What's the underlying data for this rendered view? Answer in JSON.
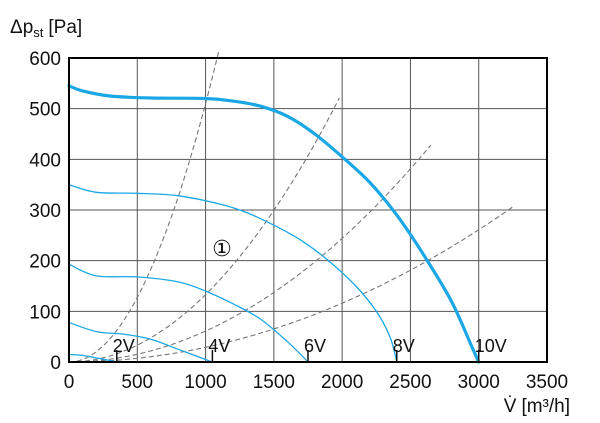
{
  "chart_data": {
    "type": "line",
    "ylabel_main": "Δp",
    "ylabel_sub": "st",
    "ylabel_unit": "[Pa]",
    "xlabel_main": "V̇",
    "xlabel_unit": "[m³/h]",
    "xlim": [
      0,
      3500
    ],
    "ylim": [
      0,
      600
    ],
    "xticks": [
      0,
      500,
      1000,
      1500,
      2000,
      2500,
      3000,
      3500
    ],
    "yticks": [
      0,
      100,
      200,
      300,
      400,
      500,
      600
    ],
    "grid": true,
    "series": [
      {
        "label": "10V",
        "emphasis": "bold",
        "points": [
          [
            0,
            545
          ],
          [
            100,
            535
          ],
          [
            300,
            525
          ],
          [
            600,
            521
          ],
          [
            1000,
            520
          ],
          [
            1200,
            515
          ],
          [
            1400,
            505
          ],
          [
            1600,
            485
          ],
          [
            1800,
            450
          ],
          [
            2000,
            405
          ],
          [
            2200,
            355
          ],
          [
            2400,
            290
          ],
          [
            2600,
            210
          ],
          [
            2800,
            120
          ],
          [
            2950,
            30
          ],
          [
            3000,
            0
          ]
        ]
      },
      {
        "label": "8V",
        "points": [
          [
            0,
            350
          ],
          [
            200,
            335
          ],
          [
            500,
            333
          ],
          [
            800,
            328
          ],
          [
            1100,
            312
          ],
          [
            1300,
            295
          ],
          [
            1500,
            270
          ],
          [
            1700,
            240
          ],
          [
            1900,
            200
          ],
          [
            2100,
            150
          ],
          [
            2250,
            100
          ],
          [
            2350,
            50
          ],
          [
            2400,
            0
          ]
        ]
      },
      {
        "label": "6V",
        "points": [
          [
            0,
            193
          ],
          [
            200,
            170
          ],
          [
            500,
            168
          ],
          [
            800,
            158
          ],
          [
            1000,
            140
          ],
          [
            1200,
            115
          ],
          [
            1400,
            85
          ],
          [
            1600,
            40
          ],
          [
            1750,
            0
          ]
        ]
      },
      {
        "label": "4V",
        "points": [
          [
            0,
            78
          ],
          [
            200,
            60
          ],
          [
            400,
            55
          ],
          [
            600,
            45
          ],
          [
            800,
            25
          ],
          [
            1000,
            5
          ],
          [
            1050,
            0
          ]
        ]
      },
      {
        "label": "2V",
        "points": [
          [
            0,
            15
          ],
          [
            100,
            13
          ],
          [
            200,
            8
          ],
          [
            300,
            3
          ],
          [
            350,
            0
          ]
        ]
      }
    ],
    "system_curves": [
      {
        "k": 0.00051,
        "xmax": 1100
      },
      {
        "k": 0.000133,
        "xmax": 1980
      },
      {
        "k": 6.1e-05,
        "xmax": 2650
      },
      {
        "k": 2.9e-05,
        "xmax": 3250
      }
    ],
    "annotations": [
      {
        "text": "①",
        "x": 1120,
        "y": 225
      }
    ]
  }
}
